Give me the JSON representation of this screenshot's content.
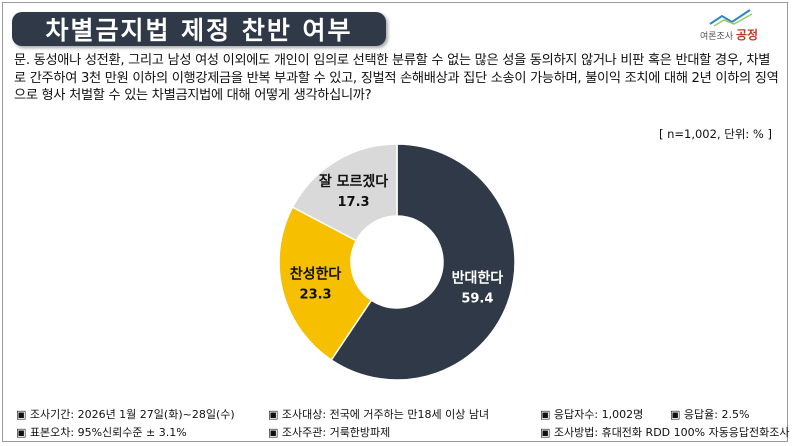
{
  "header": {
    "title": "차별금지법 제정 찬반 여부",
    "logo_sub": "여론조사",
    "logo_main": "공정"
  },
  "question": "문. 동성애나 성전환, 그리고 남성 여성 이외에도 개인이 임의로 선택한 분류할 수 없는 많은 성을 동의하지 않거나 비판 혹은 반대할 경우, 차별로 간주하여 3천 만원 이하의 이행강제금을 반복 부과할 수 있고, 징벌적 손해배상과 집단 소송이 가능하며, 불이익 조치에 대해 2년 이하의 징역으로 형사 처벌할 수 있는 차별금지법에 대해 어떻게 생각하십니까?",
  "note": "[ n=1,002, 단위: % ]",
  "chart_data": {
    "type": "pie",
    "style": "donut",
    "slices": [
      {
        "label": "반대한다",
        "value": 59.4,
        "value_label": "59.4",
        "color": "#2f3947",
        "text_color": "#ffffff"
      },
      {
        "label": "찬성한다",
        "value": 23.3,
        "value_label": "23.3",
        "color": "#f6bf00",
        "text_color": "#111111"
      },
      {
        "label": "잘 모르겠다",
        "value": 17.3,
        "value_label": "17.3",
        "color": "#d9d9d9",
        "text_color": "#111111"
      }
    ]
  },
  "footer": {
    "row1": [
      "▣ 조사기간: 2026년 1월 27일(화)~28일(수)",
      "▣ 조사대상: 전국에 거주하는 만18세 이상 남녀",
      "▣ 응답자수: 1,002명",
      "▣ 응답율: 2.5%"
    ],
    "row2": [
      "▣ 표본오차: 95%신뢰수준 ± 3.1%",
      "▣ 조사주관: 거룩한방파제",
      "▣ 조사방법: 휴대전화 RDD 100% 자동응답전화조사"
    ]
  }
}
